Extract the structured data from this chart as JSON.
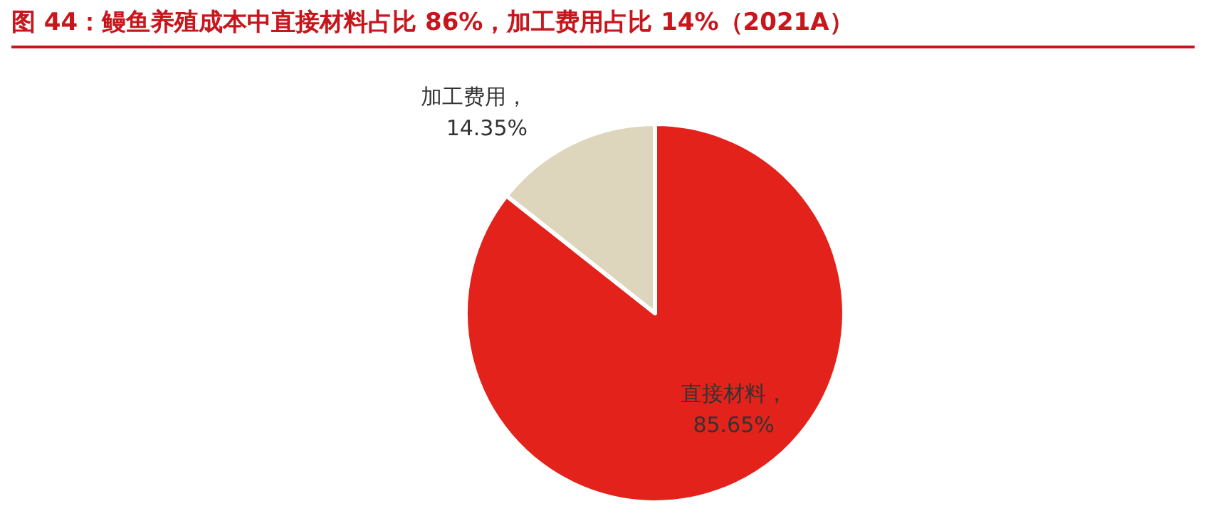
{
  "chart_data": {
    "type": "pie",
    "title": "图 44：鳗鱼养殖成本中直接材料占比 86%，加工费用占比 14%（2021A）",
    "categories": [
      "直接材料",
      "加工费用"
    ],
    "values": [
      85.65,
      14.35
    ],
    "value_labels": [
      "，85.65%",
      "，14.35%"
    ],
    "colors": [
      "#e3231b",
      "#ded5bd"
    ],
    "legend": false
  }
}
